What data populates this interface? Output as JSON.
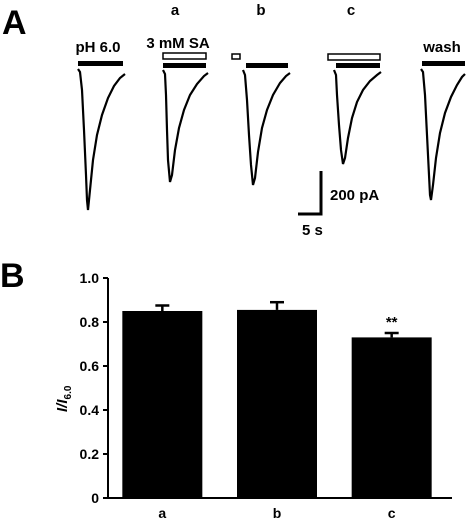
{
  "panel_a": {
    "letter": "A",
    "column_labels": [
      "a",
      "b",
      "c"
    ],
    "bar_labels": {
      "ph": "pH 6.0",
      "sa": "3 mM SA",
      "wash": "wash"
    },
    "scale_bar": {
      "current": "200 pA",
      "time": "5 s"
    }
  },
  "panel_b": {
    "letter": "B",
    "ylabel_main": "I/I",
    "ylabel_sub": "6.0",
    "significance": "**"
  },
  "chart_data": {
    "type": "bar",
    "categories": [
      "a",
      "b",
      "c"
    ],
    "values": [
      0.85,
      0.855,
      0.73
    ],
    "errors": [
      0.025,
      0.035,
      0.02
    ],
    "ylabel": "I/I6.0",
    "ylim": [
      0,
      1.0
    ],
    "yticks": [
      "0",
      "0.2",
      "0.4",
      "0.6",
      "0.8",
      "1.0"
    ],
    "annotations": [
      {
        "category": "c",
        "text": "**"
      }
    ],
    "colors": {
      "bar": "#000000",
      "axis": "#000000"
    }
  }
}
